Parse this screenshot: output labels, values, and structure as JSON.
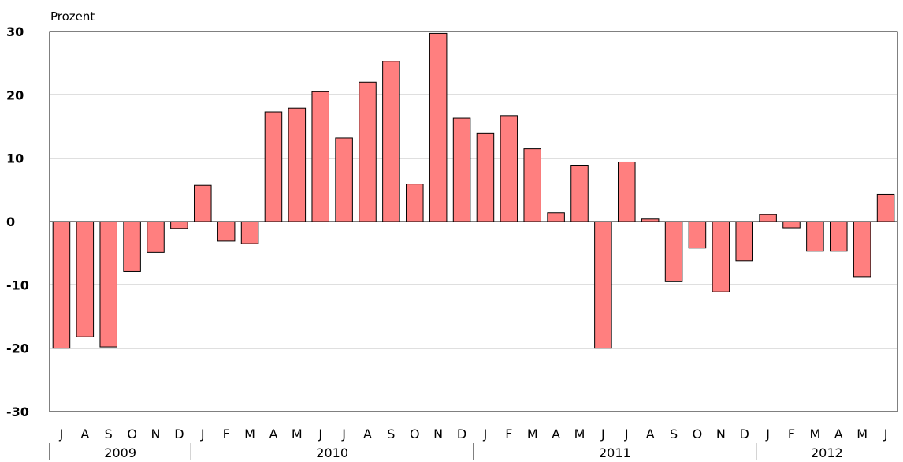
{
  "chart_data": {
    "type": "bar",
    "ylabel": "Prozent",
    "ylim": [
      -30,
      30
    ],
    "yticks": [
      30,
      20,
      10,
      0,
      -10,
      -20,
      -30
    ],
    "grid": true,
    "bar_color": "#ff7f7f",
    "categories": [
      "J",
      "A",
      "S",
      "O",
      "N",
      "D",
      "J",
      "F",
      "M",
      "A",
      "M",
      "J",
      "J",
      "A",
      "S",
      "O",
      "N",
      "D",
      "J",
      "F",
      "M",
      "A",
      "M",
      "J",
      "J",
      "A",
      "S",
      "O",
      "N",
      "D",
      "J",
      "F",
      "M",
      "A",
      "M",
      "J"
    ],
    "values": [
      -20.0,
      -18.2,
      -19.8,
      -7.9,
      -4.9,
      -1.1,
      5.7,
      -3.1,
      -3.5,
      17.3,
      17.9,
      20.5,
      13.2,
      22.0,
      25.3,
      5.9,
      29.7,
      16.3,
      13.9,
      16.7,
      11.5,
      1.4,
      8.9,
      -20.0,
      9.4,
      0.4,
      -9.5,
      -4.2,
      -11.1,
      -6.2,
      1.1,
      -1.0,
      -4.7,
      -4.7,
      -8.7,
      4.3
    ],
    "years": [
      {
        "label": "2009",
        "start": 0,
        "count": 6
      },
      {
        "label": "2010",
        "start": 6,
        "count": 12
      },
      {
        "label": "2011",
        "start": 18,
        "count": 12
      },
      {
        "label": "2012",
        "start": 30,
        "count": 6
      }
    ]
  }
}
